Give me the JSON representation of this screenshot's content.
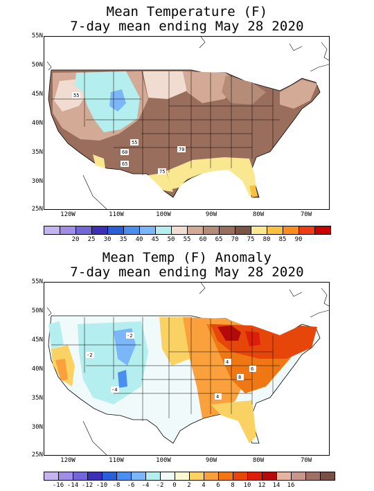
{
  "top_panel": {
    "title_line1": "Mean Temperature (F)",
    "title_line2": "7-day mean ending May 28 2020",
    "lat_labels": [
      "55N",
      "50N",
      "45N",
      "40N",
      "35N",
      "30N",
      "25N"
    ],
    "lon_labels": [
      "120W",
      "110W",
      "100W",
      "90W",
      "80W",
      "70W"
    ],
    "contour_labels": [
      "55",
      "55",
      "60",
      "65",
      "70",
      "75"
    ],
    "colorbar_colors": [
      "#c4b4f0",
      "#9f8de6",
      "#7266d8",
      "#3c2fb8",
      "#2a5fd8",
      "#4a8ff0",
      "#7ab6f8",
      "#b4eeee",
      "#f0dcd0",
      "#d2aa96",
      "#b48c78",
      "#9a6e5c",
      "#7a5444",
      "#fae890",
      "#fac040",
      "#fa8c1e",
      "#ee3c14",
      "#c80000"
    ],
    "colorbar_labels": [
      "20",
      "25",
      "30",
      "35",
      "40",
      "45",
      "50",
      "55",
      "60",
      "65",
      "70",
      "75",
      "80",
      "85",
      "90"
    ]
  },
  "bottom_panel": {
    "title_line1": "Mean Temp (F) Anomaly",
    "title_line2": "7-day mean ending May 28 2020",
    "lat_labels": [
      "55N",
      "50N",
      "45N",
      "40N",
      "35N",
      "30N",
      "25N"
    ],
    "lon_labels": [
      "120W",
      "110W",
      "100W",
      "90W",
      "80W",
      "70W"
    ],
    "contour_labels": [
      "-2",
      "-2",
      "-4",
      "4",
      "6",
      "8",
      "4"
    ],
    "colorbar_colors": [
      "#c4b4f0",
      "#9f8de6",
      "#7266d8",
      "#3c2fb8",
      "#2a5fd8",
      "#4a8ff0",
      "#7ab6f8",
      "#b4eeee",
      "#f0fafa",
      "#fafad2",
      "#fad264",
      "#faa03c",
      "#f07814",
      "#e6460a",
      "#dc1e0a",
      "#b40a0a",
      "#e6b4a0",
      "#c8968c",
      "#a07064",
      "#785046"
    ],
    "colorbar_labels": [
      "-16",
      "-14",
      "-12",
      "-10",
      "-8",
      "-6",
      "-4",
      "-2",
      "0",
      "2",
      "4",
      "6",
      "8",
      "10",
      "12",
      "14",
      "16"
    ]
  }
}
